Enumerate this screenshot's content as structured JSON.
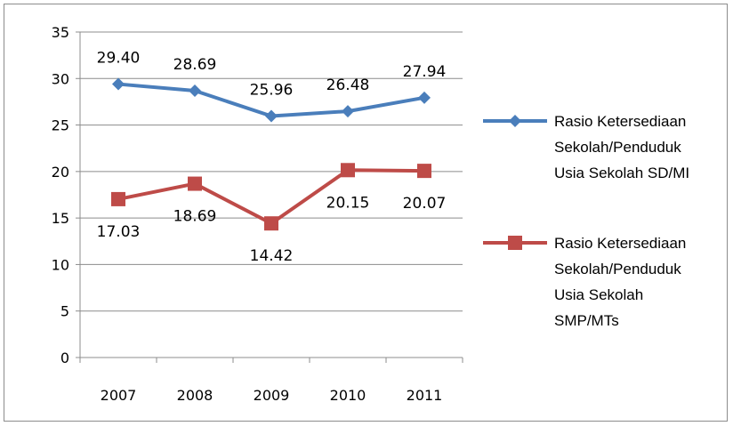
{
  "chart_data": {
    "type": "line",
    "title": "",
    "xlabel": "",
    "ylabel": "",
    "categories": [
      "2007",
      "2008",
      "2009",
      "2010",
      "2011"
    ],
    "ylim": [
      0,
      35
    ],
    "yticks": [
      0,
      5,
      10,
      15,
      20,
      25,
      30,
      35
    ],
    "grid": "horizontal",
    "legend_position": "right",
    "series": [
      {
        "name": "Rasio Ketersediaan Sekolah/Penduduk Usia Sekolah SD/MI",
        "legend_lines": [
          "Rasio Ketersediaan",
          "Sekolah/Penduduk",
          "Usia Sekolah SD/MI"
        ],
        "values": [
          29.4,
          28.69,
          25.96,
          26.48,
          27.94
        ],
        "labels": [
          "29.40",
          "28.69",
          "25.96",
          "26.48",
          "27.94"
        ],
        "label_position": "above",
        "marker": "diamond",
        "color": "#4a7ebb"
      },
      {
        "name": "Rasio Ketersediaan Sekolah/Penduduk Usia Sekolah SMP/MTs",
        "legend_lines": [
          "Rasio Ketersediaan",
          "Sekolah/Penduduk",
          "Usia Sekolah",
          "SMP/MTs"
        ],
        "values": [
          17.03,
          18.69,
          14.42,
          20.15,
          20.07
        ],
        "labels": [
          "17.03",
          "18.69",
          "14.42",
          "20.15",
          "20.07"
        ],
        "label_position": "below",
        "marker": "square",
        "color": "#be4b48"
      }
    ]
  }
}
